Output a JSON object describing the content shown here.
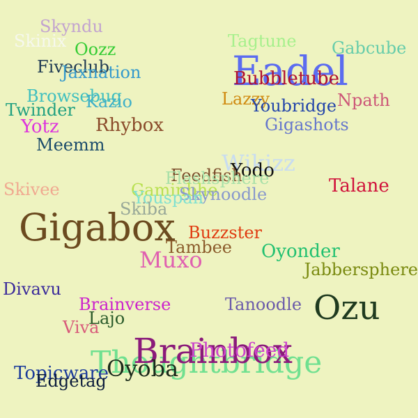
{
  "words": [
    {
      "text": "Skyndu",
      "color": "#c2a3cf"
    },
    {
      "text": "Skinix",
      "color": "#f6f8ee"
    },
    {
      "text": "Oozz",
      "color": "#33cc33"
    },
    {
      "text": "Tagtune",
      "color": "#a6f08c"
    },
    {
      "text": "Gabcube",
      "color": "#66ccaa"
    },
    {
      "text": "Fiveclub",
      "color": "#1f3a52"
    },
    {
      "text": "Jaxnation",
      "color": "#3399cc"
    },
    {
      "text": "Eadel",
      "color": "#5b6cf0"
    },
    {
      "text": "Bubbletube",
      "color": "#b01030"
    },
    {
      "text": "Browsebug",
      "color": "#3fbfbf"
    },
    {
      "text": "Kazio",
      "color": "#40b0c8"
    },
    {
      "text": "Twinder",
      "color": "#20a080"
    },
    {
      "text": "Lazzy",
      "color": "#d08a10"
    },
    {
      "text": "Youbridge",
      "color": "#2244aa"
    },
    {
      "text": "Npath",
      "color": "#cc5577"
    },
    {
      "text": "Yotz",
      "color": "#dd33dd"
    },
    {
      "text": "Rhybox",
      "color": "#8a4a2a"
    },
    {
      "text": "Gigashots",
      "color": "#6677cc"
    },
    {
      "text": "Meemm",
      "color": "#1a4a6a"
    },
    {
      "text": "Wikizz",
      "color": "#c8dcf0"
    },
    {
      "text": "Yodo",
      "color": "#101010"
    },
    {
      "text": "Feedfish",
      "color": "#7a4a2a"
    },
    {
      "text": "Flashsphere",
      "color": "#a8e0a8"
    },
    {
      "text": "Skivee",
      "color": "#f0a890"
    },
    {
      "text": "Talane",
      "color": "#d0103a"
    },
    {
      "text": "Gaminbhe",
      "color": "#b8e050"
    },
    {
      "text": "Skynoodle",
      "color": "#8898cc"
    },
    {
      "text": "Youspan",
      "color": "#80e0d0"
    },
    {
      "text": "Skiba",
      "color": "#98a898"
    },
    {
      "text": "Gigabox",
      "color": "#6b4a1f"
    },
    {
      "text": "Buzzster",
      "color": "#e03a10"
    },
    {
      "text": "Tambee",
      "color": "#8a5a2a"
    },
    {
      "text": "Oyonder",
      "color": "#20c070"
    },
    {
      "text": "Muxo",
      "color": "#e060b0"
    },
    {
      "text": "Jabbersphere",
      "color": "#7a8a10"
    },
    {
      "text": "Divavu",
      "color": "#3a2a9a"
    },
    {
      "text": "Brainverse",
      "color": "#cc22cc"
    },
    {
      "text": "Tanoodle",
      "color": "#6a5aaa"
    },
    {
      "text": "Ozu",
      "color": "#1f3a1f"
    },
    {
      "text": "Lajo",
      "color": "#2a5a2a"
    },
    {
      "text": "Viva",
      "color": "#d85a7a"
    },
    {
      "text": "Thoughtbridge",
      "color": "#70e090"
    },
    {
      "text": "Brainbox",
      "color": "#8a1a7a"
    },
    {
      "text": "Photofeed",
      "color": "#cc44cc"
    },
    {
      "text": "Oyoba",
      "color": "#1a2a1a"
    },
    {
      "text": "Topicware",
      "color": "#1a3a9a"
    },
    {
      "text": "Edgetag",
      "color": "#0a1a3a"
    }
  ]
}
